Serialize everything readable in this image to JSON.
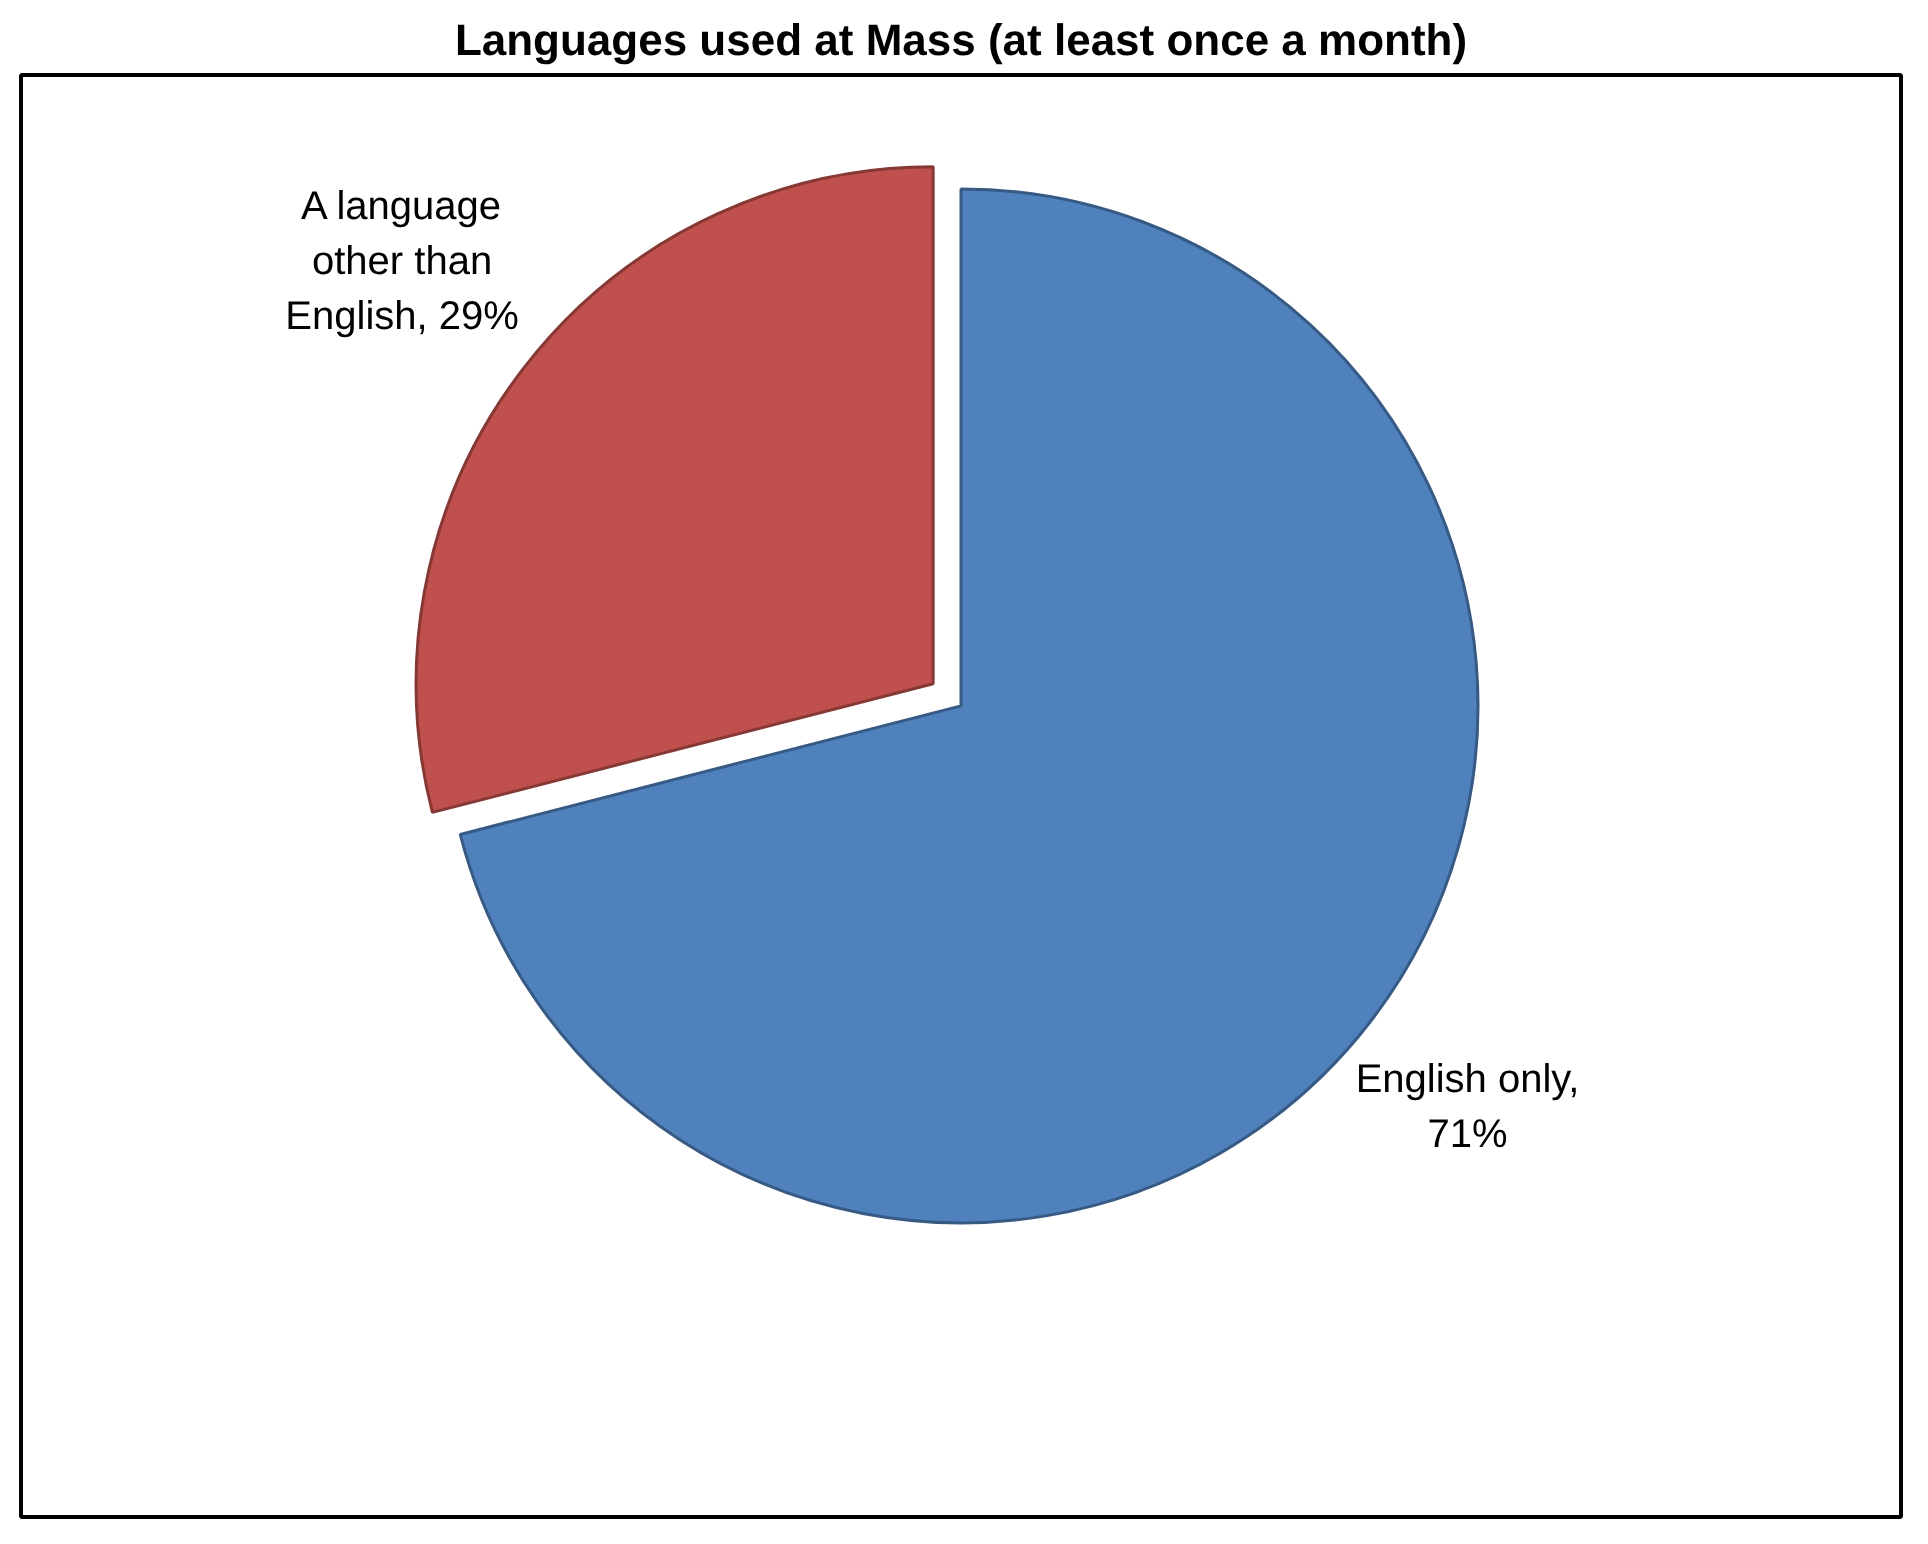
{
  "chart_data": {
    "type": "pie",
    "title": "Languages used at Mass (at least once a month)",
    "categories": [
      "English only, 71%",
      "A language other than English, 29%"
    ],
    "values": [
      71,
      29
    ],
    "colors": [
      "#4f81bd",
      "#c0504d"
    ]
  }
}
